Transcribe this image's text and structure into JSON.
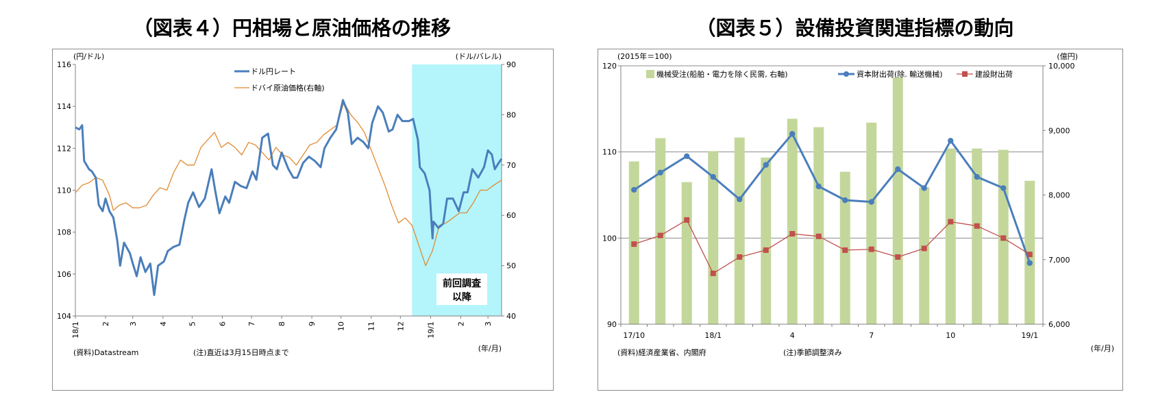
{
  "titles": {
    "left": "（図表４）円相場と原油価格の推移",
    "right": "（図表５）設備投資関連指標の動向"
  },
  "chart_data": [
    {
      "type": "line",
      "ylabel_left": "(円/ドル)",
      "ylabel_right": "(ドル/バレル)",
      "xlabel": "(年/月)",
      "ylim": [
        104,
        116
      ],
      "ylim_right": [
        40,
        90
      ],
      "yticks": [
        "116",
        "114",
        "112",
        "110",
        "108",
        "106",
        "104"
      ],
      "yticks_right": [
        "90",
        "80",
        "70",
        "60",
        "50",
        "40"
      ],
      "x_ticks": [
        "18/1",
        "2",
        "3",
        "4",
        "5",
        "6",
        "7",
        "8",
        "9",
        "10",
        "11",
        "12",
        "19/1",
        "2",
        "3"
      ],
      "grid": false,
      "legend": {
        "position": "top-center",
        "entries": [
          "ドル円レート",
          "ドバイ原油価格(右軸)"
        ]
      },
      "shaded_region": {
        "from": "2018-12-13",
        "to": "2019-03-15",
        "color": "#b3f5fb",
        "label": "前回調査以降"
      },
      "source_note": "(資料)Datastream",
      "note": "(注)直近は3月15日時点まで",
      "series": [
        {
          "name": "ドル円レート",
          "axis": "left",
          "color": "#4a7ebb",
          "points": [
            [
              "2018-01-01",
              113.0
            ],
            [
              "2018-01-05",
              112.9
            ],
            [
              "2018-01-08",
              113.1
            ],
            [
              "2018-01-10",
              111.4
            ],
            [
              "2018-01-15",
              111.0
            ],
            [
              "2018-01-18",
              110.9
            ],
            [
              "2018-01-22",
              110.6
            ],
            [
              "2018-01-25",
              109.3
            ],
            [
              "2018-01-29",
              109.0
            ],
            [
              "2018-02-01",
              109.6
            ],
            [
              "2018-02-05",
              109.0
            ],
            [
              "2018-02-09",
              108.7
            ],
            [
              "2018-02-13",
              107.6
            ],
            [
              "2018-02-16",
              106.4
            ],
            [
              "2018-02-20",
              107.5
            ],
            [
              "2018-02-26",
              107.0
            ],
            [
              "2018-03-01",
              106.5
            ],
            [
              "2018-03-05",
              105.9
            ],
            [
              "2018-03-09",
              106.8
            ],
            [
              "2018-03-14",
              106.1
            ],
            [
              "2018-03-19",
              106.5
            ],
            [
              "2018-03-23",
              105.0
            ],
            [
              "2018-03-27",
              106.4
            ],
            [
              "2018-04-02",
              106.6
            ],
            [
              "2018-04-06",
              107.1
            ],
            [
              "2018-04-12",
              107.3
            ],
            [
              "2018-04-18",
              107.4
            ],
            [
              "2018-04-23",
              108.6
            ],
            [
              "2018-04-27",
              109.4
            ],
            [
              "2018-05-02",
              109.9
            ],
            [
              "2018-05-08",
              109.2
            ],
            [
              "2018-05-14",
              109.6
            ],
            [
              "2018-05-21",
              111.0
            ],
            [
              "2018-05-25",
              109.9
            ],
            [
              "2018-05-29",
              108.9
            ],
            [
              "2018-06-04",
              109.7
            ],
            [
              "2018-06-08",
              109.4
            ],
            [
              "2018-06-14",
              110.4
            ],
            [
              "2018-06-20",
              110.2
            ],
            [
              "2018-06-26",
              110.1
            ],
            [
              "2018-07-02",
              110.9
            ],
            [
              "2018-07-06",
              110.5
            ],
            [
              "2018-07-12",
              112.5
            ],
            [
              "2018-07-18",
              112.7
            ],
            [
              "2018-07-23",
              111.2
            ],
            [
              "2018-07-27",
              111.0
            ],
            [
              "2018-08-01",
              111.8
            ],
            [
              "2018-08-08",
              111.0
            ],
            [
              "2018-08-13",
              110.6
            ],
            [
              "2018-08-17",
              110.6
            ],
            [
              "2018-08-23",
              111.3
            ],
            [
              "2018-08-29",
              111.6
            ],
            [
              "2018-09-04",
              111.4
            ],
            [
              "2018-09-10",
              111.1
            ],
            [
              "2018-09-14",
              112.0
            ],
            [
              "2018-09-20",
              112.5
            ],
            [
              "2018-09-26",
              112.9
            ],
            [
              "2018-10-03",
              114.3
            ],
            [
              "2018-10-08",
              113.7
            ],
            [
              "2018-10-12",
              112.2
            ],
            [
              "2018-10-18",
              112.5
            ],
            [
              "2018-10-24",
              112.3
            ],
            [
              "2018-10-29",
              112.0
            ],
            [
              "2018-11-02",
              113.2
            ],
            [
              "2018-11-08",
              114.0
            ],
            [
              "2018-11-13",
              113.7
            ],
            [
              "2018-11-19",
              112.8
            ],
            [
              "2018-11-23",
              112.9
            ],
            [
              "2018-11-28",
              113.6
            ],
            [
              "2018-12-03",
              113.3
            ],
            [
              "2018-12-10",
              113.3
            ],
            [
              "2018-12-14",
              113.4
            ],
            [
              "2018-12-19",
              112.4
            ],
            [
              "2018-12-21",
              111.1
            ],
            [
              "2018-12-26",
              110.8
            ],
            [
              "2018-12-31",
              110.0
            ],
            [
              "2019-01-03",
              107.7
            ],
            [
              "2019-01-04",
              108.5
            ],
            [
              "2019-01-09",
              108.2
            ],
            [
              "2019-01-14",
              108.4
            ],
            [
              "2019-01-18",
              109.6
            ],
            [
              "2019-01-24",
              109.6
            ],
            [
              "2019-01-30",
              109.0
            ],
            [
              "2019-02-04",
              109.9
            ],
            [
              "2019-02-08",
              109.9
            ],
            [
              "2019-02-13",
              111.0
            ],
            [
              "2019-02-19",
              110.6
            ],
            [
              "2019-02-25",
              111.1
            ],
            [
              "2019-03-01",
              111.9
            ],
            [
              "2019-03-05",
              111.7
            ],
            [
              "2019-03-08",
              111.0
            ],
            [
              "2019-03-12",
              111.3
            ],
            [
              "2019-03-15",
              111.5
            ]
          ]
        },
        {
          "name": "ドバイ原油価格(右軸)",
          "axis": "right",
          "color": "#e08a30",
          "points": [
            [
              "2018-01-01",
              64.5
            ],
            [
              "2018-01-08",
              66.0
            ],
            [
              "2018-01-15",
              66.5
            ],
            [
              "2018-01-22",
              67.5
            ],
            [
              "2018-01-29",
              67.0
            ],
            [
              "2018-02-05",
              64.0
            ],
            [
              "2018-02-09",
              61.0
            ],
            [
              "2018-02-15",
              62.0
            ],
            [
              "2018-02-22",
              62.5
            ],
            [
              "2018-03-01",
              61.5
            ],
            [
              "2018-03-08",
              61.5
            ],
            [
              "2018-03-15",
              62.0
            ],
            [
              "2018-03-22",
              64.0
            ],
            [
              "2018-03-29",
              65.5
            ],
            [
              "2018-04-05",
              65.0
            ],
            [
              "2018-04-12",
              68.5
            ],
            [
              "2018-04-19",
              71.0
            ],
            [
              "2018-04-26",
              70.0
            ],
            [
              "2018-05-03",
              70.0
            ],
            [
              "2018-05-10",
              73.5
            ],
            [
              "2018-05-17",
              75.0
            ],
            [
              "2018-05-24",
              76.5
            ],
            [
              "2018-05-31",
              73.5
            ],
            [
              "2018-06-07",
              74.5
            ],
            [
              "2018-06-14",
              73.5
            ],
            [
              "2018-06-21",
              72.0
            ],
            [
              "2018-06-28",
              74.5
            ],
            [
              "2018-07-05",
              74.0
            ],
            [
              "2018-07-12",
              72.5
            ],
            [
              "2018-07-19",
              71.0
            ],
            [
              "2018-07-26",
              73.5
            ],
            [
              "2018-08-02",
              72.0
            ],
            [
              "2018-08-09",
              71.5
            ],
            [
              "2018-08-16",
              70.0
            ],
            [
              "2018-08-23",
              72.0
            ],
            [
              "2018-08-30",
              74.0
            ],
            [
              "2018-09-06",
              74.5
            ],
            [
              "2018-09-13",
              76.0
            ],
            [
              "2018-09-20",
              77.0
            ],
            [
              "2018-09-27",
              78.0
            ],
            [
              "2018-10-04",
              82.5
            ],
            [
              "2018-10-11",
              80.0
            ],
            [
              "2018-10-18",
              78.5
            ],
            [
              "2018-10-25",
              76.5
            ],
            [
              "2018-11-01",
              73.0
            ],
            [
              "2018-11-08",
              69.5
            ],
            [
              "2018-11-15",
              66.0
            ],
            [
              "2018-11-22",
              62.0
            ],
            [
              "2018-11-29",
              58.5
            ],
            [
              "2018-12-06",
              59.5
            ],
            [
              "2018-12-13",
              58.0
            ],
            [
              "2018-12-20",
              54.0
            ],
            [
              "2018-12-27",
              50.0
            ],
            [
              "2019-01-03",
              53.0
            ],
            [
              "2019-01-10",
              58.0
            ],
            [
              "2019-01-17",
              58.5
            ],
            [
              "2019-01-24",
              59.5
            ],
            [
              "2019-01-31",
              60.5
            ],
            [
              "2019-02-07",
              60.5
            ],
            [
              "2019-02-14",
              62.5
            ],
            [
              "2019-02-21",
              65.0
            ],
            [
              "2019-02-28",
              65.0
            ],
            [
              "2019-03-07",
              66.0
            ],
            [
              "2019-03-15",
              67.0
            ]
          ]
        }
      ]
    },
    {
      "type": "bar+line",
      "ylabel_left": "(2015年＝100)",
      "ylabel_right": "(億円)",
      "xlabel": "(年/月)",
      "ylim": [
        90,
        120
      ],
      "ylim_right": [
        6000,
        10000
      ],
      "yticks": [
        "120",
        "110",
        "100",
        "90"
      ],
      "yticks_right": [
        "10,000",
        "9,000",
        "8,000",
        "7,000",
        "6,000"
      ],
      "x_labels": {
        "0": "17/10",
        "3": "18/1",
        "6": "4",
        "9": "7",
        "12": "10",
        "15": "19/1"
      },
      "categories": [
        "2017-10",
        "2017-11",
        "2017-12",
        "2018-01",
        "2018-02",
        "2018-03",
        "2018-04",
        "2018-05",
        "2018-06",
        "2018-07",
        "2018-08",
        "2018-09",
        "2018-10",
        "2018-11",
        "2018-12",
        "2019-01"
      ],
      "grid": true,
      "legend": {
        "position": "top",
        "entries": [
          "機械受注(船舶・電力を除く民需, 右軸)",
          "資本財出荷(除. 輸送機械)",
          "建設財出荷"
        ]
      },
      "source_note": "(資料)経済産業省、内閣府",
      "note": "(注)季節調整済み",
      "bars": {
        "name": "機械受注(船舶・電力を除く民需, 右軸)",
        "axis": "right",
        "color": "#c4d79b",
        "values": [
          8520,
          8880,
          8200,
          8680,
          8890,
          8580,
          9180,
          9050,
          8360,
          9120,
          9820,
          8120,
          8720,
          8720,
          8700,
          8220
        ]
      },
      "lines": [
        {
          "name": "資本財出荷(除. 輸送機械)",
          "axis": "left",
          "color": "#4a7ebb",
          "marker": "circle",
          "values": [
            105.6,
            107.6,
            109.5,
            107.1,
            104.5,
            108.5,
            112.1,
            106.0,
            104.4,
            104.2,
            108.0,
            105.8,
            111.3,
            107.1,
            105.8,
            97.1
          ]
        },
        {
          "name": "建設財出荷",
          "axis": "left",
          "color": "#c0504d",
          "marker": "square",
          "values": [
            99.3,
            100.3,
            102.1,
            95.9,
            97.8,
            98.6,
            100.5,
            100.2,
            98.6,
            98.7,
            97.8,
            98.8,
            101.9,
            101.4,
            100.0,
            98.1
          ]
        }
      ]
    }
  ]
}
